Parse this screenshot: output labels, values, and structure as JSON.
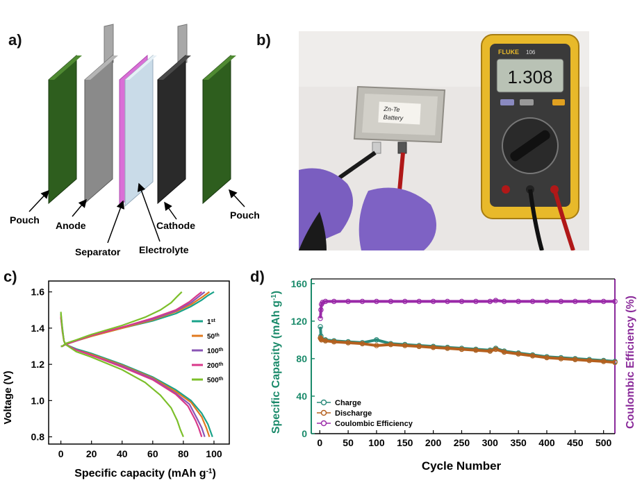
{
  "panels": {
    "a": "a)",
    "b": "b)",
    "c": "c)",
    "d": "d)"
  },
  "diagram_a": {
    "labels": {
      "pouch_left": "Pouch",
      "anode": "Anode",
      "separator": "Separator",
      "electrolyte": "Electrolyte",
      "cathode": "Cathode",
      "pouch_right": "Pouch"
    },
    "colors": {
      "pouch": "#2e5e1e",
      "anode": "#8a8a8a",
      "separator": "#d96fd6",
      "electrolyte": "#c9dbe8",
      "cathode": "#2a2a2a"
    }
  },
  "photo_b": {
    "battery_label_line1": "Zn-Te",
    "battery_label_line2": "Battery",
    "meter_brand": "FLUKE",
    "meter_model": "106",
    "meter_reading": "1.308"
  },
  "chart_data": [
    {
      "id": "c",
      "type": "line",
      "xlabel": "Specific capacity (mAh g",
      "xlabel_sup": "-1",
      "xlabel_end": ")",
      "ylabel": "Voltage (V)",
      "xlim": [
        -8,
        110
      ],
      "ylim": [
        0.76,
        1.66
      ],
      "xticks": [
        "0",
        "20",
        "40",
        "60",
        "80",
        "100"
      ],
      "xtick_values": [
        0,
        20,
        40,
        60,
        80,
        100
      ],
      "yticks": [
        "0.8",
        "1.0",
        "1.2",
        "1.4",
        "1.6"
      ],
      "ytick_values": [
        0.8,
        1.0,
        1.2,
        1.4,
        1.6
      ],
      "legend_position": "right",
      "series": [
        {
          "name": "1",
          "sup": "st",
          "color": "#1aa38a",
          "charge": [
            [
              0,
              1.3
            ],
            [
              1,
              1.3
            ],
            [
              3,
              1.31
            ],
            [
              10,
              1.33
            ],
            [
              20,
              1.355
            ],
            [
              40,
              1.4
            ],
            [
              60,
              1.44
            ],
            [
              75,
              1.48
            ],
            [
              85,
              1.52
            ],
            [
              92,
              1.555
            ],
            [
              96,
              1.58
            ],
            [
              100,
              1.6
            ]
          ],
          "discharge": [
            [
              0,
              1.48
            ],
            [
              1,
              1.4
            ],
            [
              2,
              1.33
            ],
            [
              3,
              1.31
            ],
            [
              10,
              1.285
            ],
            [
              20,
              1.26
            ],
            [
              40,
              1.2
            ],
            [
              60,
              1.13
            ],
            [
              75,
              1.06
            ],
            [
              85,
              1.0
            ],
            [
              92,
              0.93
            ],
            [
              96,
              0.87
            ],
            [
              99,
              0.8
            ]
          ]
        },
        {
          "name": "50",
          "sup": "th",
          "color": "#e07a1f",
          "charge": [
            [
              0,
              1.3
            ],
            [
              1,
              1.3
            ],
            [
              3,
              1.31
            ],
            [
              10,
              1.33
            ],
            [
              20,
              1.355
            ],
            [
              40,
              1.4
            ],
            [
              60,
              1.445
            ],
            [
              75,
              1.49
            ],
            [
              85,
              1.53
            ],
            [
              93,
              1.575
            ],
            [
              97,
              1.6
            ]
          ],
          "discharge": [
            [
              0,
              1.47
            ],
            [
              1,
              1.39
            ],
            [
              2,
              1.33
            ],
            [
              3,
              1.31
            ],
            [
              10,
              1.28
            ],
            [
              20,
              1.255
            ],
            [
              40,
              1.195
            ],
            [
              60,
              1.125
            ],
            [
              75,
              1.05
            ],
            [
              85,
              0.99
            ],
            [
              92,
              0.91
            ],
            [
              95,
              0.85
            ],
            [
              97,
              0.8
            ]
          ]
        },
        {
          "name": "100",
          "sup": "th",
          "color": "#8a55b5",
          "charge": [
            [
              0,
              1.3
            ],
            [
              1,
              1.3
            ],
            [
              3,
              1.31
            ],
            [
              10,
              1.33
            ],
            [
              20,
              1.36
            ],
            [
              40,
              1.405
            ],
            [
              60,
              1.45
            ],
            [
              75,
              1.495
            ],
            [
              85,
              1.54
            ],
            [
              91,
              1.58
            ],
            [
              94,
              1.6
            ]
          ],
          "discharge": [
            [
              0,
              1.46
            ],
            [
              1,
              1.39
            ],
            [
              2,
              1.33
            ],
            [
              3,
              1.31
            ],
            [
              10,
              1.28
            ],
            [
              20,
              1.25
            ],
            [
              40,
              1.19
            ],
            [
              60,
              1.12
            ],
            [
              75,
              1.04
            ],
            [
              84,
              0.98
            ],
            [
              89,
              0.9
            ],
            [
              92,
              0.85
            ],
            [
              94,
              0.8
            ]
          ]
        },
        {
          "name": "200",
          "sup": "th",
          "color": "#d8388a",
          "charge": [
            [
              0,
              1.3
            ],
            [
              1,
              1.3
            ],
            [
              3,
              1.31
            ],
            [
              10,
              1.33
            ],
            [
              20,
              1.36
            ],
            [
              40,
              1.405
            ],
            [
              60,
              1.455
            ],
            [
              75,
              1.5
            ],
            [
              84,
              1.545
            ],
            [
              89,
              1.58
            ],
            [
              92,
              1.6
            ]
          ],
          "discharge": [
            [
              0,
              1.46
            ],
            [
              1,
              1.38
            ],
            [
              2,
              1.33
            ],
            [
              3,
              1.31
            ],
            [
              10,
              1.28
            ],
            [
              20,
              1.25
            ],
            [
              40,
              1.185
            ],
            [
              60,
              1.115
            ],
            [
              75,
              1.035
            ],
            [
              83,
              0.97
            ],
            [
              88,
              0.89
            ],
            [
              90,
              0.85
            ],
            [
              92,
              0.8
            ]
          ]
        },
        {
          "name": "500",
          "sup": "th",
          "color": "#7cbf2a",
          "charge": [
            [
              0,
              1.3
            ],
            [
              1,
              1.3
            ],
            [
              3,
              1.315
            ],
            [
              10,
              1.335
            ],
            [
              20,
              1.365
            ],
            [
              40,
              1.415
            ],
            [
              55,
              1.46
            ],
            [
              65,
              1.5
            ],
            [
              72,
              1.54
            ],
            [
              76,
              1.575
            ],
            [
              79,
              1.6
            ]
          ],
          "discharge": [
            [
              0,
              1.49
            ],
            [
              1,
              1.39
            ],
            [
              2,
              1.33
            ],
            [
              3,
              1.31
            ],
            [
              10,
              1.27
            ],
            [
              20,
              1.24
            ],
            [
              40,
              1.17
            ],
            [
              55,
              1.1
            ],
            [
              65,
              1.03
            ],
            [
              72,
              0.96
            ],
            [
              76,
              0.89
            ],
            [
              78,
              0.84
            ],
            [
              80,
              0.8
            ]
          ]
        }
      ]
    },
    {
      "id": "d",
      "type": "scatter",
      "xlabel": "Cycle Number",
      "ylabel_left": "Specific Capacity (mAh g",
      "ylabel_left_sup": "-1",
      "ylabel_left_end": ")",
      "ylabel_right": "Coulombic Efficiency (%)",
      "xlim": [
        -15,
        520
      ],
      "ylim": [
        0,
        165
      ],
      "xticks": [
        "0",
        "50",
        "100",
        "150",
        "200",
        "250",
        "300",
        "350",
        "400",
        "450",
        "500"
      ],
      "xtick_values": [
        0,
        50,
        100,
        150,
        200,
        250,
        300,
        350,
        400,
        450,
        500
      ],
      "yticks": [
        "0",
        "40",
        "80",
        "120",
        "160"
      ],
      "ytick_values": [
        0,
        40,
        80,
        120,
        160
      ],
      "left_axis_color": "#1a8a6a",
      "right_axis_color": "#8a2a9a",
      "legend_position": "bottom-left",
      "series": [
        {
          "name": "Charge",
          "color": "#2a8a7a",
          "marker": "circle-open",
          "points": [
            [
              1,
              114
            ],
            [
              2,
              104
            ],
            [
              3,
              101
            ],
            [
              10,
              100
            ],
            [
              25,
              99
            ],
            [
              50,
              98
            ],
            [
              75,
              97
            ],
            [
              100,
              100
            ],
            [
              125,
              96
            ],
            [
              150,
              95
            ],
            [
              175,
              94
            ],
            [
              200,
              93
            ],
            [
              225,
              92
            ],
            [
              250,
              91
            ],
            [
              275,
              90
            ],
            [
              300,
              89
            ],
            [
              310,
              91
            ],
            [
              325,
              88
            ],
            [
              350,
              86
            ],
            [
              375,
              84
            ],
            [
              400,
              82
            ],
            [
              425,
              81
            ],
            [
              450,
              80
            ],
            [
              475,
              79
            ],
            [
              500,
              78
            ],
            [
              520,
              77
            ]
          ]
        },
        {
          "name": "Discharge",
          "color": "#b5601e",
          "marker": "circle-open",
          "points": [
            [
              1,
              102
            ],
            [
              2,
              101
            ],
            [
              3,
              100
            ],
            [
              10,
              99
            ],
            [
              25,
              98
            ],
            [
              50,
              97
            ],
            [
              75,
              96
            ],
            [
              100,
              94
            ],
            [
              125,
              95
            ],
            [
              150,
              94
            ],
            [
              175,
              93
            ],
            [
              200,
              92
            ],
            [
              225,
              91
            ],
            [
              250,
              90
            ],
            [
              275,
              89
            ],
            [
              300,
              88
            ],
            [
              310,
              90
            ],
            [
              325,
              87
            ],
            [
              350,
              85
            ],
            [
              375,
              83
            ],
            [
              400,
              81
            ],
            [
              425,
              80
            ],
            [
              450,
              79
            ],
            [
              475,
              78
            ],
            [
              500,
              77
            ],
            [
              520,
              76
            ]
          ]
        },
        {
          "name": "Coulombic Efficiency",
          "color": "#9a2aa8",
          "marker": "circle-open",
          "points": [
            [
              1,
              123
            ],
            [
              2,
              132
            ],
            [
              3,
              138
            ],
            [
              5,
              140
            ],
            [
              10,
              141
            ],
            [
              25,
              141
            ],
            [
              50,
              141
            ],
            [
              75,
              141
            ],
            [
              100,
              141
            ],
            [
              125,
              141
            ],
            [
              150,
              141
            ],
            [
              175,
              141
            ],
            [
              200,
              141
            ],
            [
              225,
              141
            ],
            [
              250,
              141
            ],
            [
              275,
              141
            ],
            [
              300,
              141
            ],
            [
              310,
              142
            ],
            [
              325,
              141
            ],
            [
              350,
              141
            ],
            [
              375,
              141
            ],
            [
              400,
              141
            ],
            [
              425,
              141
            ],
            [
              450,
              141
            ],
            [
              475,
              141
            ],
            [
              500,
              141
            ],
            [
              520,
              141
            ]
          ]
        }
      ]
    }
  ]
}
